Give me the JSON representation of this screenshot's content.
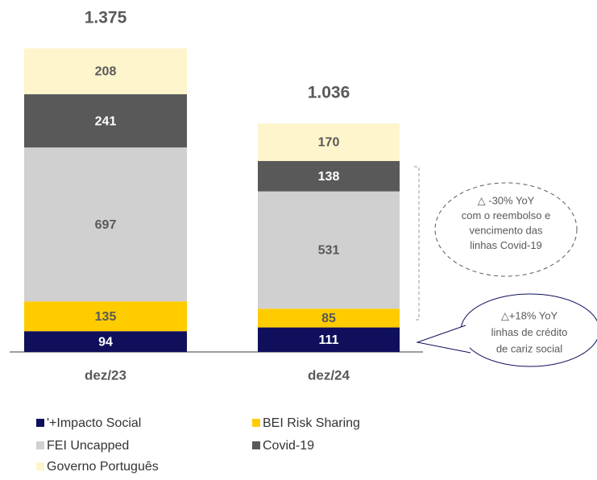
{
  "chart_data": {
    "type": "stacked_bar",
    "categories": [
      "dez/23",
      "dez/24"
    ],
    "series": [
      {
        "name": "'+Impacto Social",
        "color": "#0f0f5c",
        "values": [
          94,
          111
        ]
      },
      {
        "name": "BEI Risk Sharing",
        "color": "#ffcc00",
        "values": [
          135,
          85
        ]
      },
      {
        "name": "FEI Uncapped",
        "color": "#d0d0d0",
        "values": [
          697,
          531
        ]
      },
      {
        "name": "Covid-19",
        "color": "#595959",
        "values": [
          241,
          138
        ]
      },
      {
        "name": "Governo Português",
        "color": "#fff5cc",
        "values": [
          208,
          170
        ]
      }
    ],
    "totals": {
      "values": [
        1375,
        1036
      ],
      "value_labels": [
        "1.375",
        "1.036"
      ]
    },
    "annotations": [
      {
        "lines": [
          "△ -30% YoY",
          "com o reembolso e",
          "vencimento das",
          "linhas Covid-19"
        ]
      },
      {
        "lines": [
          "△+18% YoY",
          "linhas de crédito",
          "de cariz social"
        ]
      }
    ]
  }
}
